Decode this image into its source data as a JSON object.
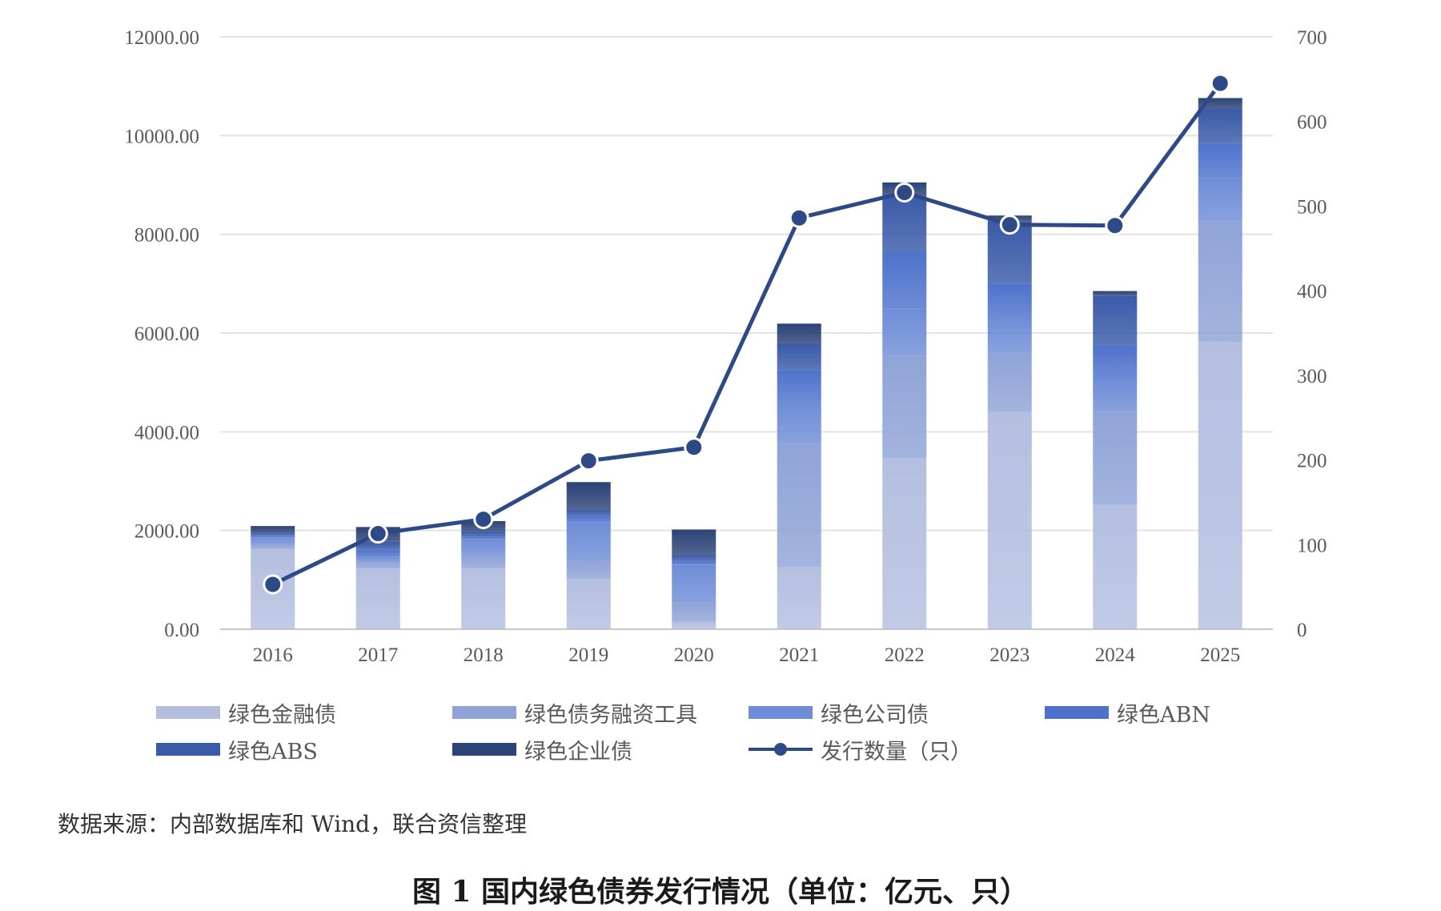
{
  "chart_data": {
    "type": "bar",
    "stacked": true,
    "categories": [
      "2016",
      "2017",
      "2018",
      "2019",
      "2020",
      "2021",
      "2022",
      "2023",
      "2024",
      "2025"
    ],
    "ylim_left": [
      0,
      12000
    ],
    "ylim_right": [
      0,
      700
    ],
    "yticks_left": [
      "0.00",
      "2000.00",
      "4000.00",
      "6000.00",
      "8000.00",
      "10000.00",
      "12000.00"
    ],
    "yticks_right": [
      "0",
      "100",
      "200",
      "300",
      "400",
      "500",
      "600",
      "700"
    ],
    "grid": true,
    "legend_position": "bottom",
    "series": [
      {
        "name": "绿色金融债",
        "axis": "left",
        "color": "#b4bfe0",
        "values": [
          1620,
          1230,
          1230,
          1020,
          150,
          1260,
          3460,
          4400,
          2520,
          5820
        ]
      },
      {
        "name": "绿色债务融资工具",
        "axis": "left",
        "color": "#8fa3d7",
        "values": [
          100,
          140,
          240,
          360,
          400,
          2490,
          2080,
          1200,
          1880,
          2440
        ]
      },
      {
        "name": "绿色公司债",
        "axis": "left",
        "color": "#6f8dd7",
        "values": [
          140,
          100,
          360,
          780,
          760,
          840,
          950,
          700,
          660,
          880
        ]
      },
      {
        "name": "绿色ABN",
        "axis": "left",
        "color": "#4e72cc",
        "values": [
          40,
          140,
          40,
          130,
          70,
          660,
          1140,
          700,
          690,
          700
        ]
      },
      {
        "name": "绿色ABS",
        "axis": "left",
        "color": "#3a5aa8",
        "values": [
          60,
          160,
          120,
          140,
          140,
          540,
          1150,
          1260,
          1000,
          700
        ]
      },
      {
        "name": "绿色企业债",
        "axis": "left",
        "color": "#2c4377",
        "values": [
          130,
          300,
          200,
          550,
          500,
          400,
          270,
          120,
          100,
          220
        ]
      }
    ],
    "line_series": {
      "name": "发行数量（只）",
      "axis": "right",
      "color": "#2e4a86",
      "values": [
        53,
        113,
        130,
        199,
        215,
        486,
        516,
        478,
        477,
        645
      ]
    }
  },
  "source_text": "数据来源：内部数据库和 Wind，联合资信整理",
  "caption": "图 1  国内绿色债券发行情况（单位：亿元、只）"
}
